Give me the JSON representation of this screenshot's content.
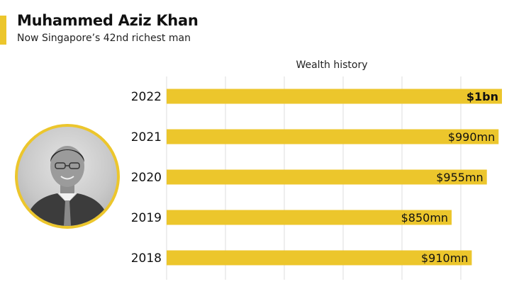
{
  "header": {
    "title": "Muhammed Aziz Khan",
    "subtitle": "Now Singapore’s 42nd richest man"
  },
  "colors": {
    "accent": "#ecc62c",
    "bar": "#ecc62c",
    "grid": "#dedede",
    "text": "#111111"
  },
  "portrait": {
    "icon": "person-portrait-icon"
  },
  "chart_data": {
    "type": "bar",
    "orientation": "horizontal",
    "title": "Wealth history",
    "xlabel": "",
    "ylabel": "",
    "unit": "USD",
    "grid": true,
    "xlim": [
      0,
      1.15
    ],
    "categories": [
      "2022",
      "2021",
      "2020",
      "2019",
      "2018"
    ],
    "values": [
      1.0,
      0.99,
      0.955,
      0.85,
      0.91
    ],
    "labels": [
      "$1bn",
      "$990mn",
      "$955mn",
      "$850mn",
      "$910mn"
    ],
    "bold_labels": [
      true,
      false,
      false,
      false,
      false
    ]
  }
}
